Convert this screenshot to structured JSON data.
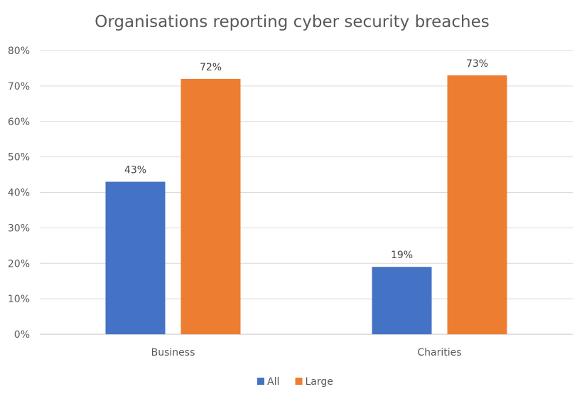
{
  "chart_data": {
    "type": "bar",
    "title": "Organisations reporting cyber security breaches",
    "categories": [
      "Business",
      "Charities"
    ],
    "series": [
      {
        "name": "All",
        "values": [
          43,
          19
        ],
        "labels": [
          "43%",
          "19%"
        ],
        "color": "#4472C4"
      },
      {
        "name": "Large",
        "values": [
          72,
          73
        ],
        "labels": [
          "72%",
          "73%"
        ],
        "color": "#ED7D31"
      }
    ],
    "ylim": [
      0,
      80
    ],
    "yticks": [
      0,
      10,
      20,
      30,
      40,
      50,
      60,
      70,
      80
    ],
    "ytick_labels": [
      "0%",
      "10%",
      "20%",
      "30%",
      "40%",
      "50%",
      "60%",
      "70%",
      "80%"
    ],
    "grid": true,
    "legend_position": "bottom"
  }
}
